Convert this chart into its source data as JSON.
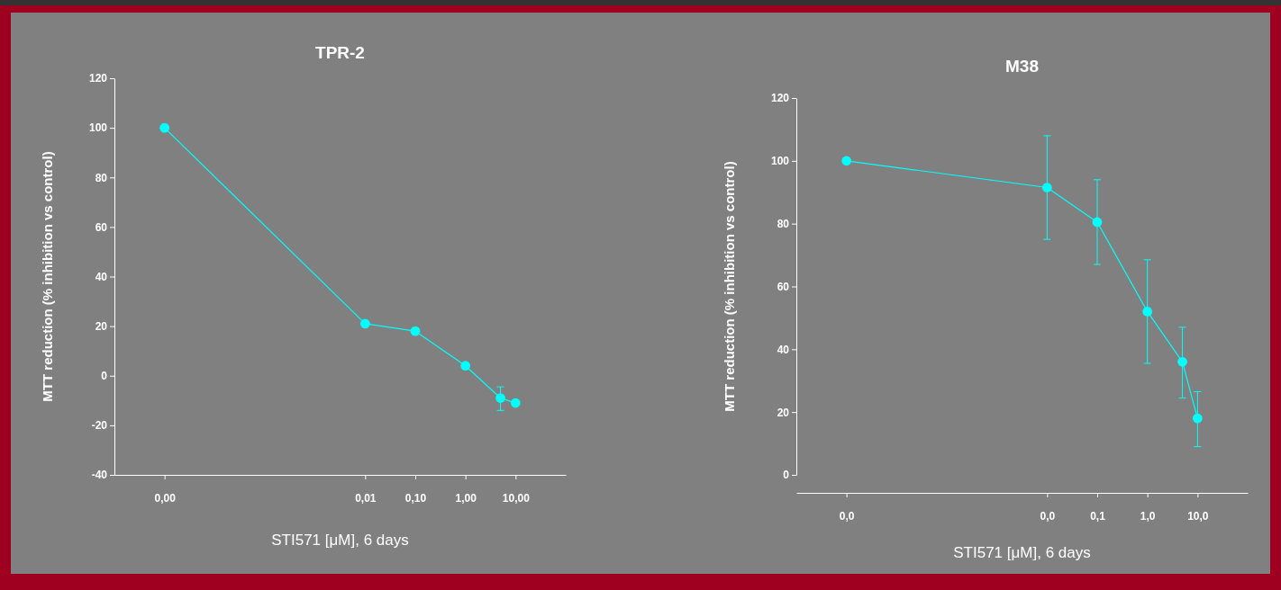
{
  "chart_data": [
    {
      "type": "line",
      "title": "TPR-2",
      "xlabel": "STI571 [μM], 6 days",
      "ylabel": "MTT reduction (% inhibition vs control)",
      "log": "x",
      "xlim": [
        1e-07,
        100
      ],
      "xticks": [
        {
          "value": 1e-06,
          "label": "0,00"
        },
        {
          "value": 0.01,
          "label": "0,01"
        },
        {
          "value": 0.1,
          "label": "0,10"
        },
        {
          "value": 1,
          "label": "1,00"
        },
        {
          "value": 10,
          "label": "10,00"
        }
      ],
      "ylim": [
        -40,
        120
      ],
      "yticks": [
        -40,
        -20,
        0,
        20,
        40,
        60,
        80,
        100,
        120
      ],
      "grid": false,
      "marker": "circle",
      "line_style": "solid",
      "series": [
        {
          "color": "#00ffff",
          "x": [
            1e-06,
            0.01,
            0.1,
            1,
            5,
            10
          ],
          "values": [
            100,
            21,
            18,
            4,
            -9,
            -11
          ],
          "errors": [
            null,
            null,
            null,
            null,
            [
              -14,
              -4.5
            ],
            null
          ]
        }
      ]
    },
    {
      "type": "line",
      "title": "M38",
      "xlabel": "STI571 [μM], 6 days",
      "ylabel": "MTT reduction (% inhibition vs control)",
      "log": "x",
      "xlim": [
        1e-07,
        100
      ],
      "xticks": [
        {
          "value": 1e-06,
          "label": "0,0"
        },
        {
          "value": 0.01,
          "label": "0,0"
        },
        {
          "value": 0.1,
          "label": "0,1"
        },
        {
          "value": 1,
          "label": "1,0"
        },
        {
          "value": 10,
          "label": "10,0"
        }
      ],
      "ylim": [
        0,
        120
      ],
      "yticks": [
        0,
        20,
        40,
        60,
        80,
        100,
        120
      ],
      "grid": false,
      "marker": "circle",
      "line_style": "solid",
      "series": [
        {
          "color": "#00ffff",
          "x": [
            1e-06,
            0.01,
            0.1,
            1,
            5,
            10
          ],
          "values": [
            100,
            91.5,
            80.5,
            52,
            36,
            18
          ],
          "errors": [
            null,
            [
              75,
              108
            ],
            [
              67,
              94
            ],
            [
              35.5,
              68.5
            ],
            [
              24.5,
              47
            ],
            [
              9,
              26.5
            ]
          ]
        }
      ]
    }
  ]
}
